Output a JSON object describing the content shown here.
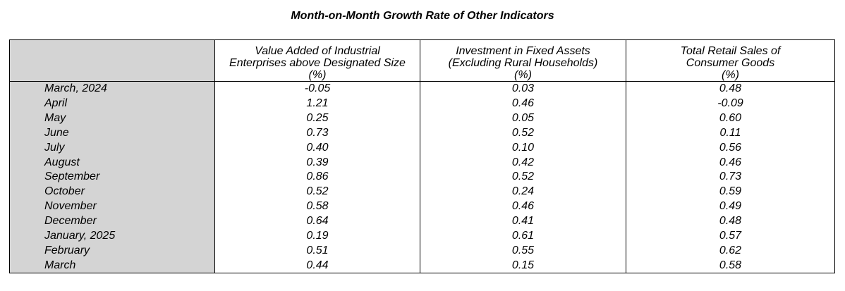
{
  "title": "Month-on-Month Growth Rate of Other Indicators",
  "chart_data": {
    "type": "table",
    "title": "Month-on-Month Growth Rate of Other Indicators",
    "columns": [
      {
        "line1": "Value Added of Industrial",
        "line2": "Enterprises above Designated Size",
        "unit": "(%)"
      },
      {
        "line1": "Investment in Fixed Assets",
        "line2": "(Excluding Rural Households)",
        "unit": "(%)"
      },
      {
        "line1": "Total Retail Sales of",
        "line2": "Consumer Goods",
        "unit": "(%)"
      }
    ],
    "rows": [
      {
        "month": "March, 2024",
        "values": [
          "-0.05",
          "0.03",
          "0.48"
        ]
      },
      {
        "month": "April",
        "values": [
          "1.21",
          "0.46",
          "-0.09"
        ]
      },
      {
        "month": "May",
        "values": [
          "0.25",
          "0.05",
          "0.60"
        ]
      },
      {
        "month": "June",
        "values": [
          "0.73",
          "0.52",
          "0.11"
        ]
      },
      {
        "month": "July",
        "values": [
          "0.40",
          "0.10",
          "0.56"
        ]
      },
      {
        "month": "August",
        "values": [
          "0.39",
          "0.42",
          "0.46"
        ]
      },
      {
        "month": "September",
        "values": [
          "0.86",
          "0.52",
          "0.73"
        ]
      },
      {
        "month": "October",
        "values": [
          "0.52",
          "0.24",
          "0.59"
        ]
      },
      {
        "month": "November",
        "values": [
          "0.58",
          "0.46",
          "0.49"
        ]
      },
      {
        "month": "December",
        "values": [
          "0.64",
          "0.41",
          "0.48"
        ]
      },
      {
        "month": "January, 2025",
        "values": [
          "0.19",
          "0.61",
          "0.57"
        ]
      },
      {
        "month": "February",
        "values": [
          "0.51",
          "0.55",
          "0.62"
        ]
      },
      {
        "month": "March",
        "values": [
          "0.44",
          "0.15",
          "0.58"
        ]
      }
    ]
  }
}
